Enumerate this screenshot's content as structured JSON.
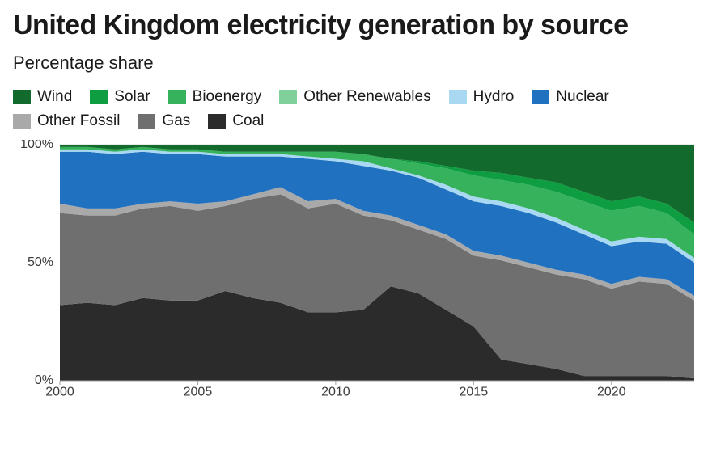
{
  "title": "United Kingdom electricity generation by source",
  "subtitle": "Percentage share",
  "chart": {
    "type": "stacked-area-100",
    "years": [
      2000,
      2001,
      2002,
      2003,
      2004,
      2005,
      2006,
      2007,
      2008,
      2009,
      2010,
      2011,
      2012,
      2013,
      2014,
      2015,
      2016,
      2017,
      2018,
      2019,
      2020,
      2021,
      2022,
      2023
    ],
    "series_order": [
      "coal",
      "gas",
      "other_fossil",
      "nuclear",
      "hydro",
      "other_renewables",
      "bioenergy",
      "solar",
      "wind"
    ],
    "series": {
      "coal": {
        "label": "Coal",
        "color": "#2b2b2b",
        "values": [
          32,
          33,
          32,
          35,
          34,
          34,
          38,
          35,
          33,
          29,
          29,
          30,
          40,
          37,
          30,
          23,
          9,
          7,
          5,
          2,
          2,
          2,
          2,
          1
        ]
      },
      "gas": {
        "label": "Gas",
        "color": "#6f6f6f",
        "values": [
          39,
          37,
          38,
          38,
          40,
          38,
          36,
          42,
          46,
          44,
          46,
          40,
          28,
          27,
          30,
          30,
          42,
          41,
          40,
          41,
          37,
          40,
          39,
          33
        ]
      },
      "other_fossil": {
        "label": "Other Fossil",
        "color": "#a9a9a9",
        "values": [
          4,
          3,
          3,
          2,
          2,
          3,
          2,
          2,
          3,
          3,
          2,
          2,
          2,
          2,
          2,
          2,
          2,
          2,
          2,
          2,
          2,
          2,
          2,
          2
        ]
      },
      "nuclear": {
        "label": "Nuclear",
        "color": "#2171c1",
        "values": [
          22,
          24,
          23,
          22,
          20,
          21,
          19,
          16,
          13,
          18,
          16,
          19,
          19,
          20,
          19,
          21,
          21,
          21,
          20,
          17,
          16,
          15,
          15,
          14
        ]
      },
      "hydro": {
        "label": "Hydro",
        "color": "#a9d9f2",
        "values": [
          1,
          1,
          1,
          1,
          1,
          1,
          1,
          1,
          1,
          1,
          1,
          2,
          1,
          1,
          2,
          2,
          2,
          2,
          2,
          2,
          2,
          2,
          2,
          2
        ]
      },
      "other_renewables": {
        "label": "Other Renewables",
        "color": "#7fd09a",
        "values": [
          0,
          0,
          0,
          0,
          0,
          0,
          0,
          0,
          0,
          0,
          0,
          0,
          0,
          0,
          0,
          0,
          0,
          0,
          0,
          0,
          0,
          0,
          0,
          0
        ]
      },
      "bioenergy": {
        "label": "Bioenergy",
        "color": "#35b25b",
        "values": [
          1,
          1,
          1,
          1,
          1,
          1,
          1,
          1,
          1,
          2,
          3,
          3,
          4,
          5,
          7,
          9,
          9,
          10,
          11,
          12,
          13,
          13,
          11,
          10
        ]
      },
      "solar": {
        "label": "Solar",
        "color": "#0f9d42",
        "values": [
          0,
          0,
          0,
          0,
          0,
          0,
          0,
          0,
          0,
          0,
          0,
          0,
          0,
          1,
          1,
          2,
          3,
          3,
          4,
          4,
          4,
          4,
          4,
          5
        ]
      },
      "wind": {
        "label": "Wind",
        "color": "#126b2c",
        "values": [
          1,
          1,
          2,
          1,
          2,
          2,
          3,
          3,
          3,
          3,
          3,
          4,
          6,
          7,
          9,
          11,
          12,
          14,
          16,
          20,
          24,
          22,
          25,
          33
        ]
      }
    },
    "y_axis": {
      "min": 0,
      "max": 100,
      "ticks": [
        0,
        50,
        100
      ],
      "suffix": "%"
    },
    "x_axis": {
      "ticks": [
        2000,
        2005,
        2010,
        2015,
        2020
      ]
    },
    "grid_color": "#d3d9d3",
    "background": "#ffffff"
  }
}
